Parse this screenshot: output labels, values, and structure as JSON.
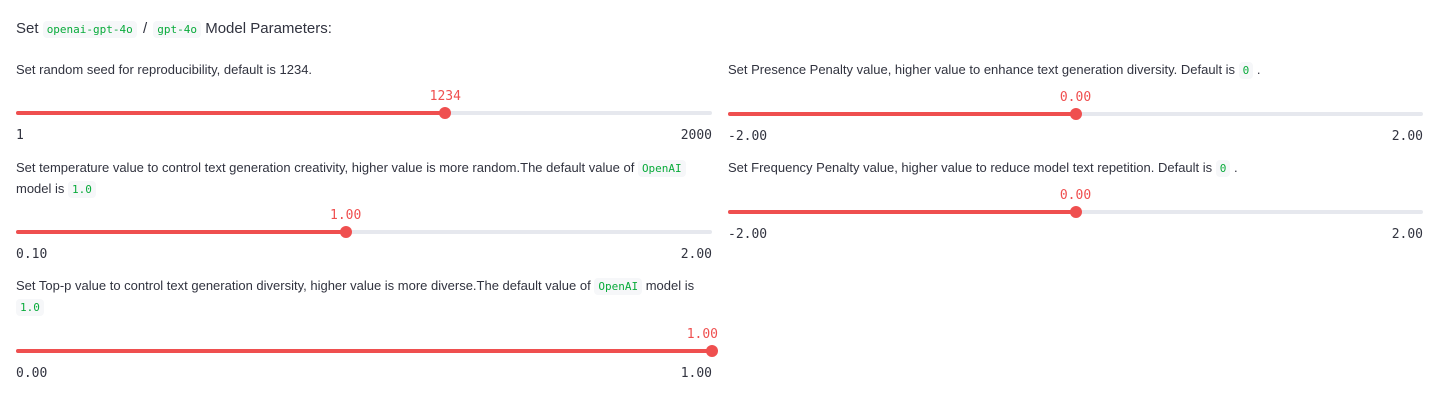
{
  "heading": {
    "prefix": "Set",
    "provider": "openai-gpt-4o",
    "separator": "/",
    "model": "gpt-4o",
    "suffix": "Model Parameters:"
  },
  "sliders": [
    {
      "id": "seed",
      "label_parts": [
        {
          "text": "Set random seed for reproducibility, default is 1234."
        }
      ],
      "value": 1234,
      "value_text": "1234",
      "min": 1,
      "max": 2000,
      "min_text": "1",
      "max_text": "2000"
    },
    {
      "id": "temperature",
      "label_parts": [
        {
          "text": "Set temperature value to control text generation creativity, higher value is more random.The default value of "
        },
        {
          "code": "OpenAI"
        },
        {
          "text": " model is "
        },
        {
          "code": "1.0"
        }
      ],
      "value": 1.0,
      "value_text": "1.00",
      "min": 0.1,
      "max": 2.0,
      "min_text": "0.10",
      "max_text": "2.00"
    },
    {
      "id": "top_p",
      "label_parts": [
        {
          "text": "Set Top-p value to control text generation diversity, higher value is more diverse.The default value of "
        },
        {
          "code": "OpenAI"
        },
        {
          "text": " model is "
        },
        {
          "code": "1.0"
        }
      ],
      "value": 1.0,
      "value_text": "1.00",
      "min": 0.0,
      "max": 1.0,
      "min_text": "0.00",
      "max_text": "1.00"
    },
    {
      "id": "presence_penalty",
      "label_parts": [
        {
          "text": "Set Presence Penalty value, higher value to enhance text generation diversity. Default is "
        },
        {
          "code": "0"
        },
        {
          "text": " ."
        }
      ],
      "value": 0.0,
      "value_text": "0.00",
      "min": -2.0,
      "max": 2.0,
      "min_text": "-2.00",
      "max_text": "2.00"
    },
    {
      "id": "frequency_penalty",
      "label_parts": [
        {
          "text": "Set Frequency Penalty value, higher value to reduce model text repetition. Default is "
        },
        {
          "code": "0"
        },
        {
          "text": " ."
        }
      ],
      "value": 0.0,
      "value_text": "0.00",
      "min": -2.0,
      "max": 2.0,
      "min_text": "-2.00",
      "max_text": "2.00"
    }
  ],
  "colors": {
    "accent": "#ef4f4f",
    "track": "#e6e8ee",
    "code_text": "#09ab3b",
    "code_bg": "#f6f7f9",
    "text": "#31333f"
  }
}
